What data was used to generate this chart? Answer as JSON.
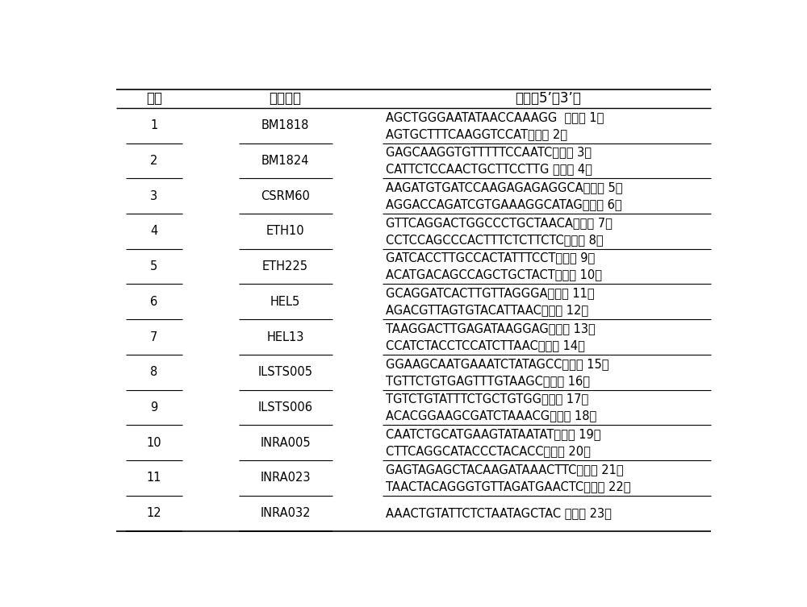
{
  "col_headers": [
    "序号",
    "引物名称",
    "序列（5’－3’）"
  ],
  "rows": [
    {
      "num": "1",
      "name": "BM1818",
      "seq1": "AGCTGGGAATATAACCAAAGG  （序列 1）",
      "seq2": "AGTGCTTTCAAGGTCCAT（序列 2）"
    },
    {
      "num": "2",
      "name": "BM1824",
      "seq1": "GAGCAAGGTGTTTTTCCAATC（序列 3）",
      "seq2": "CATTCTCCAACTGCTTCCTTG （序列 4）"
    },
    {
      "num": "3",
      "name": "CSRM60",
      "seq1": "AAGATGTGATCCAAGAGAGAGGCA（序列 5）",
      "seq2": "AGGACCAGATCGTGAAAGGCATAG（序列 6）"
    },
    {
      "num": "4",
      "name": "ETH10",
      "seq1": "GTTCAGGACTGGCCCTGCTAACA（序列 7）",
      "seq2": "CCTCCAGCCCACTTTCTCTTCTC（序列 8）"
    },
    {
      "num": "5",
      "name": "ETH225",
      "seq1": "GATCACCTTGCCACTATTTCCT（序列 9）",
      "seq2": "ACATGACAGCCAGCTGCTACT（序列 10）"
    },
    {
      "num": "6",
      "name": "HEL5",
      "seq1": "GCAGGATCACTTGTTAGGGA（序列 11）",
      "seq2": "AGACGTTAGTGTACATTAAC（序列 12）"
    },
    {
      "num": "7",
      "name": "HEL13",
      "seq1": "TAAGGACTTGAGATAAGGAG（序列 13）",
      "seq2": "CCATCTACCTCCATCTTAAC（序列 14）"
    },
    {
      "num": "8",
      "name": "ILSTS005",
      "seq1": "GGAAGCAATGAAATCTATAGCC（序列 15）",
      "seq2": "TGTTCTGTGAGTTTGTAAGC（序列 16）"
    },
    {
      "num": "9",
      "name": "ILSTS006",
      "seq1": "TGTCTGTATTTCTGCTGTGG（序列 17）",
      "seq2": "ACACGGAAGCGATCTAAACG（序列 18）"
    },
    {
      "num": "10",
      "name": "INRA005",
      "seq1": "CAATCTGCATGAAGTATAATAT（序列 19）",
      "seq2": "CTTCAGGCATACCCTACACC（序列 20）"
    },
    {
      "num": "11",
      "name": "INRA023",
      "seq1": "GAGTAGAGCTACAAGATAAACTTC（序列 21）",
      "seq2": "TAACTACAGGGTGTTAGATGAACTC（序列 22）"
    },
    {
      "num": "12",
      "name": "INRA032",
      "seq1": "AAACTGTATTCTCTAATAGCTAC （序列 23）",
      "seq2": ""
    }
  ],
  "bg_color": "#ffffff",
  "text_color": "#000000",
  "fig_width": 10.0,
  "fig_height": 7.53,
  "dpi": 100
}
